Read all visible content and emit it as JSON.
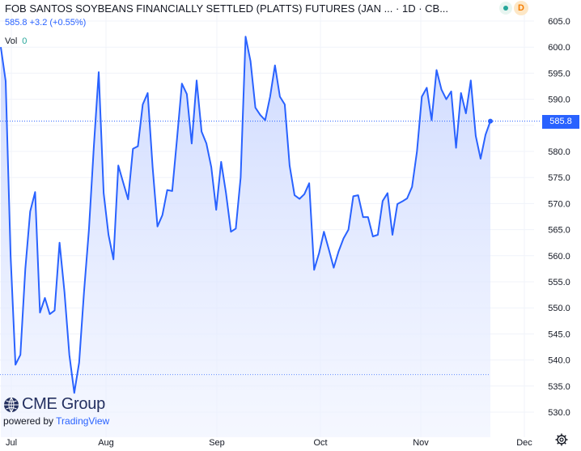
{
  "header": {
    "title": "FOB SANTOS SOYBEANS FINANCIALLY SETTLED (PLATTS) FUTURES (JAN ... · 1D · CB...",
    "last": "585.8",
    "change": "+3.2 (+0.55%)",
    "vol_label": "Vol",
    "vol_value": "0",
    "badge_letter": "D"
  },
  "price_tag": "585.8",
  "branding": {
    "logo": "CME Group",
    "powered_by": "powered by",
    "tradingview": "TradingView"
  },
  "colors": {
    "line": "#2962ff",
    "fill": "#dbe4ff",
    "axis_text": "#131722",
    "grid": "#f0f3fa"
  },
  "icons": [
    "cme-globe-icon",
    "settings-gear-icon",
    "market-status-icon"
  ],
  "chart_data": {
    "type": "area",
    "ylim": [
      528,
      606
    ],
    "y_ticks": [
      605.0,
      600.0,
      595.0,
      590.0,
      585.0,
      580.0,
      575.0,
      570.0,
      565.0,
      560.0,
      555.0,
      550.0,
      545.0,
      540.0,
      535.0,
      530.0
    ],
    "x_labels": [
      "Jul",
      "Aug",
      "Sep",
      "Oct",
      "Nov",
      "Dec"
    ],
    "last_value": 585.8,
    "dotted_low": 537.2,
    "series": [
      {
        "values": [
          600.0,
          593.5,
          560.0,
          539.1,
          541.0,
          557.5,
          568.5,
          572.2,
          549.1,
          551.9,
          548.8,
          549.5,
          562.5,
          553.0,
          541.0,
          533.7,
          539.5,
          553.0,
          565.0,
          581.0,
          595.2,
          572.0,
          564.0,
          559.3,
          577.3,
          574.0,
          570.8,
          580.5,
          581.0,
          589.0,
          591.2,
          577.0,
          565.6,
          567.8,
          572.6,
          572.4,
          582.5,
          593.0,
          591.0,
          581.5,
          593.6,
          583.8,
          581.5,
          577.0,
          568.8,
          578.0,
          572.0,
          564.6,
          565.2,
          575.0,
          602.0,
          597.3,
          588.4,
          587.0,
          586.0,
          590.5,
          596.5,
          590.5,
          589.0,
          577.3,
          571.6,
          570.9,
          571.8,
          573.9,
          557.3,
          560.5,
          564.6,
          561.2,
          557.7,
          560.8,
          563.3,
          565.0,
          571.4,
          571.6,
          567.4,
          567.4,
          563.7,
          564.0,
          570.5,
          572.0,
          564.0,
          569.9,
          570.4,
          571.0,
          573.2,
          580.0,
          590.5,
          592.2,
          586.0,
          595.6,
          591.9,
          590.0,
          591.5,
          580.7,
          591.2,
          587.3,
          593.6,
          583.0,
          578.6,
          583.2,
          585.8
        ]
      }
    ]
  }
}
